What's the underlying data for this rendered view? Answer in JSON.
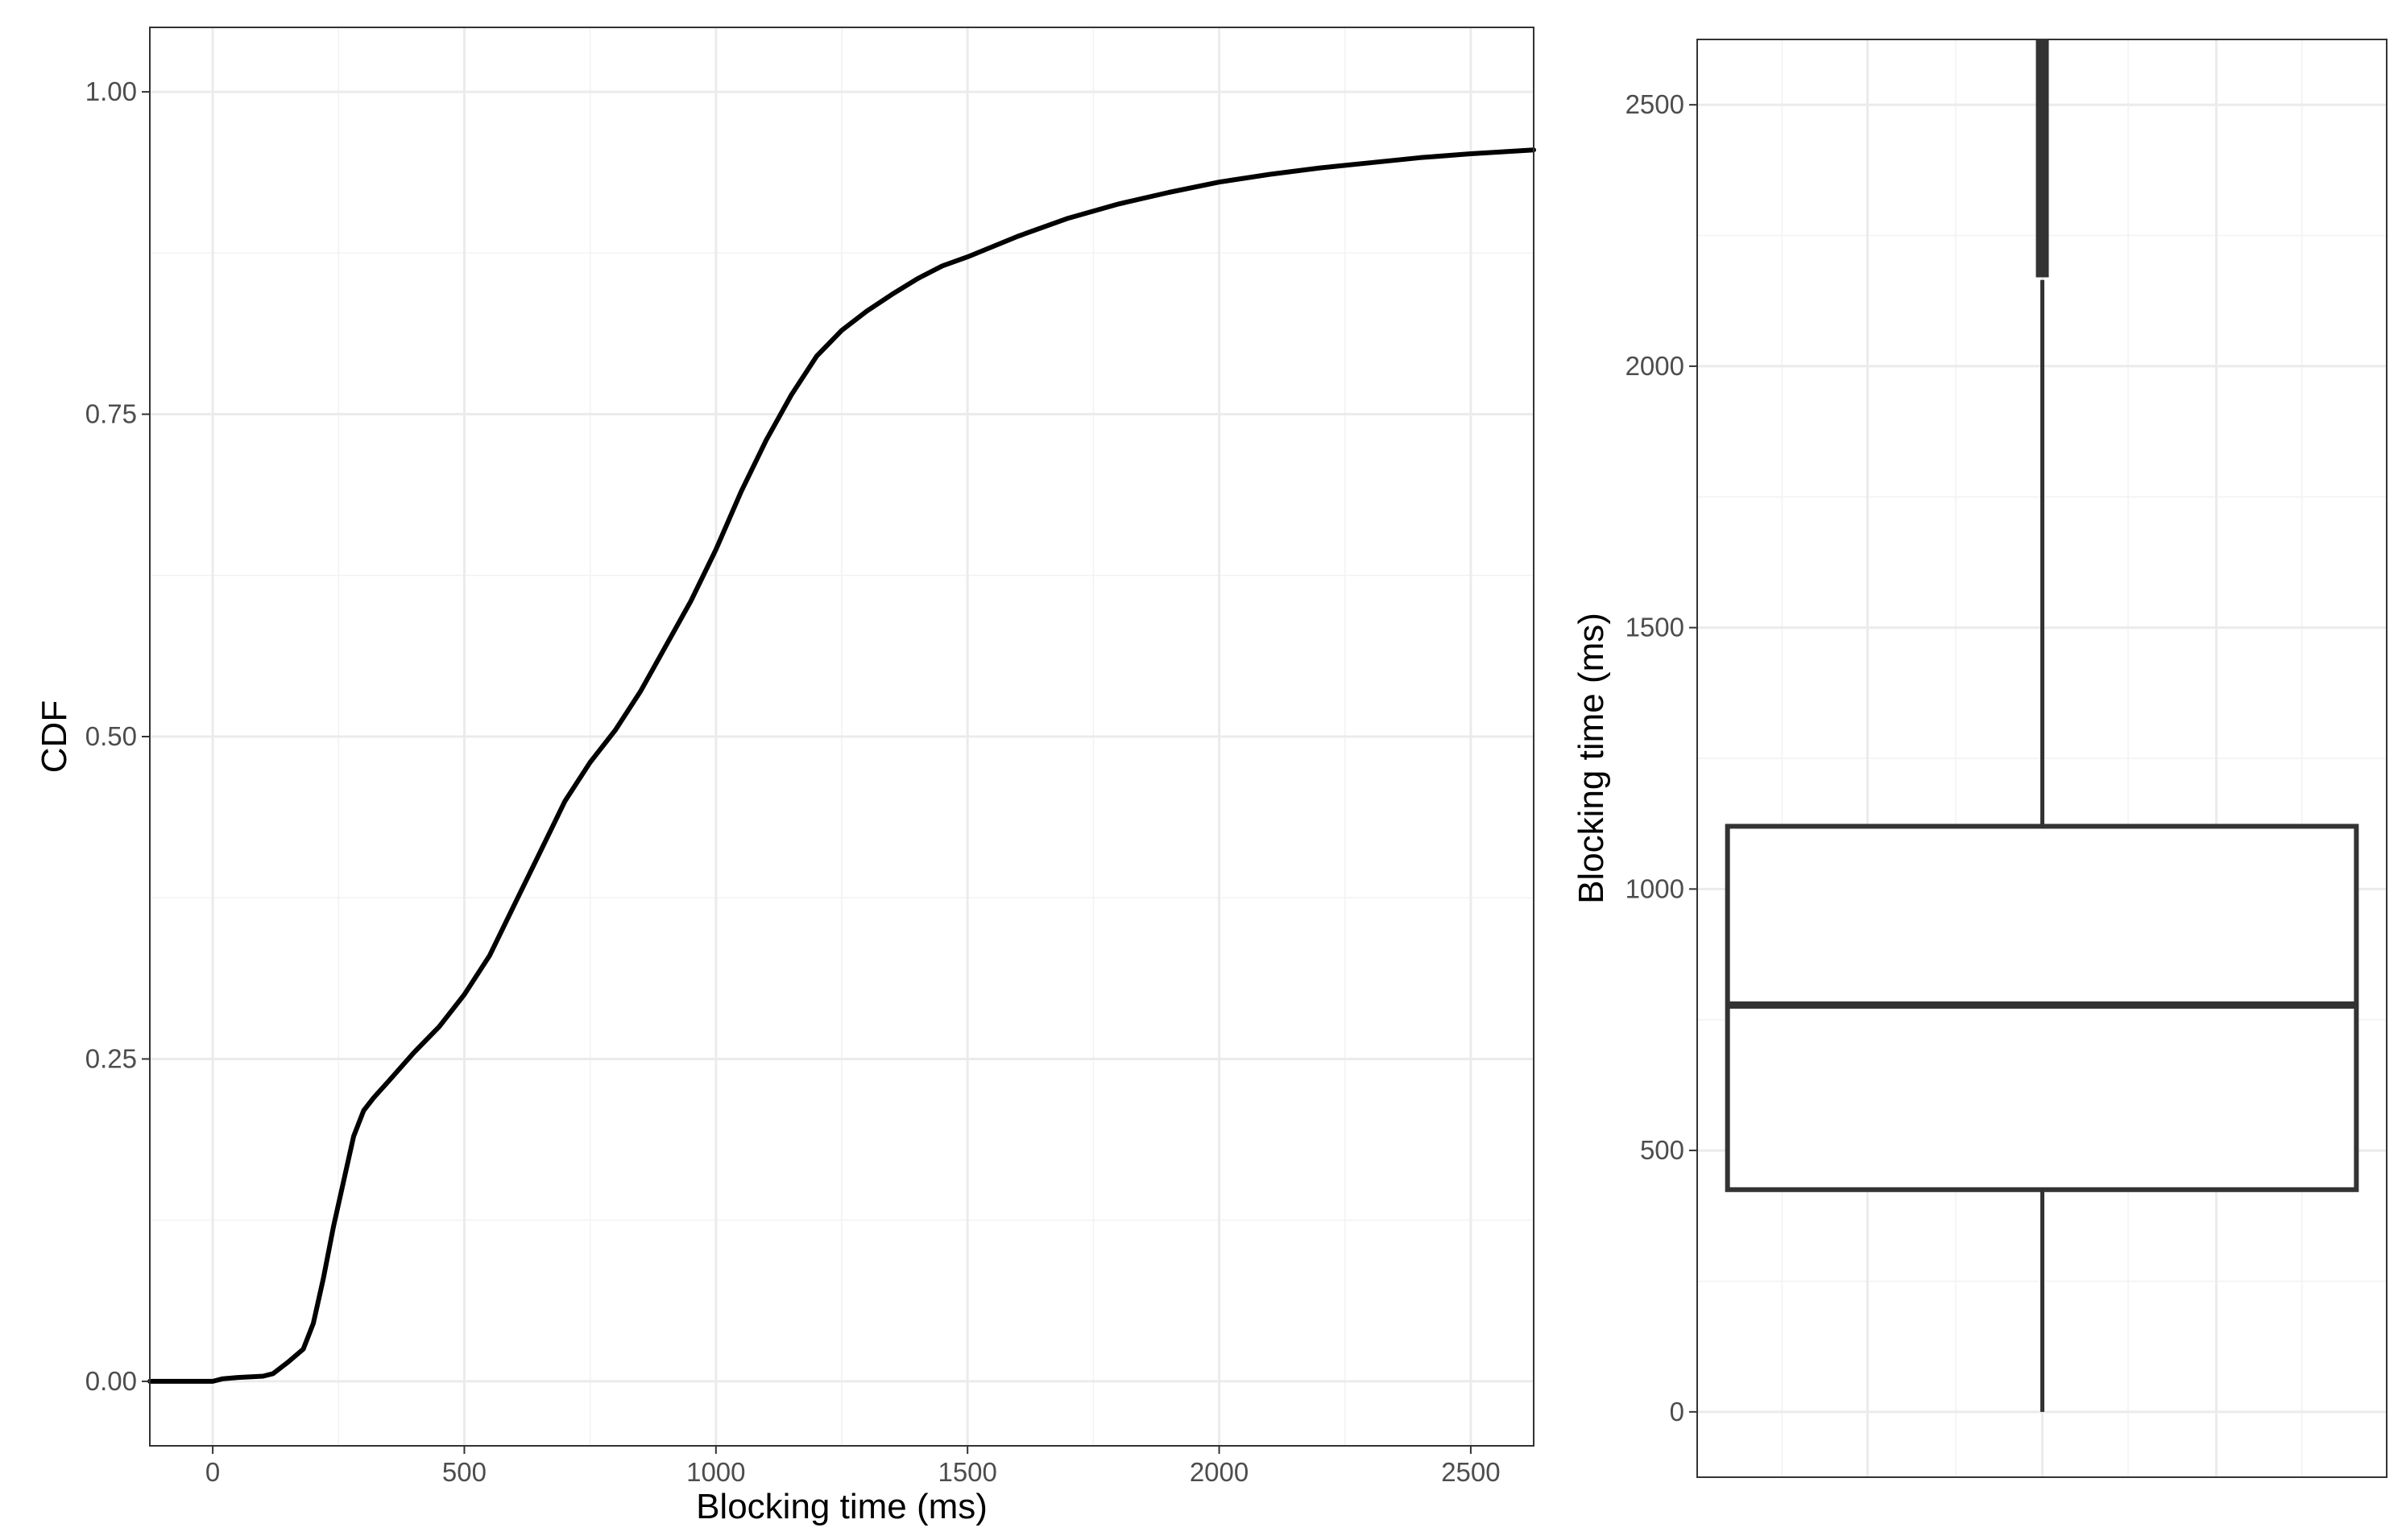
{
  "chart_data": [
    {
      "type": "line",
      "title": "",
      "xlabel": "Blocking time (ms)",
      "ylabel": "CDF",
      "xlim": [
        -125,
        2625
      ],
      "ylim": [
        -0.05,
        1.05
      ],
      "x_ticks": [
        {
          "value": 0,
          "label": "0"
        },
        {
          "value": 500,
          "label": "500"
        },
        {
          "value": 1000,
          "label": "1000"
        },
        {
          "value": 1500,
          "label": "1500"
        },
        {
          "value": 2000,
          "label": "2000"
        },
        {
          "value": 2500,
          "label": "2500"
        }
      ],
      "y_ticks": [
        {
          "value": 0,
          "label": "0.00"
        },
        {
          "value": 0.25,
          "label": "0.25"
        },
        {
          "value": 0.5,
          "label": "0.50"
        },
        {
          "value": 0.75,
          "label": "0.75"
        },
        {
          "value": 1,
          "label": "1.00"
        }
      ],
      "grid": true,
      "line_color": "#000000",
      "series": [
        {
          "x": [
            -125,
            0,
            20,
            50,
            100,
            120,
            150,
            180,
            200,
            220,
            240,
            260,
            280,
            300,
            320,
            350,
            400,
            450,
            500,
            550,
            600,
            650,
            700,
            750,
            800,
            850,
            900,
            950,
            1000,
            1050,
            1100,
            1150,
            1200,
            1250,
            1300,
            1350,
            1400,
            1450,
            1500,
            1600,
            1700,
            1800,
            1900,
            2000,
            2100,
            2200,
            2300,
            2400,
            2500,
            2625
          ],
          "y": [
            0.0,
            0.0,
            0.002,
            0.003,
            0.004,
            0.006,
            0.015,
            0.025,
            0.045,
            0.08,
            0.12,
            0.155,
            0.19,
            0.21,
            0.22,
            0.233,
            0.255,
            0.275,
            0.3,
            0.33,
            0.37,
            0.41,
            0.45,
            0.48,
            0.505,
            0.535,
            0.57,
            0.605,
            0.645,
            0.69,
            0.73,
            0.765,
            0.795,
            0.815,
            0.83,
            0.843,
            0.855,
            0.865,
            0.872,
            0.888,
            0.902,
            0.913,
            0.922,
            0.93,
            0.936,
            0.941,
            0.945,
            0.949,
            0.952,
            0.955
          ]
        }
      ]
    },
    {
      "type": "box",
      "title": "",
      "xlabel": "",
      "ylabel": "Blocking time (ms)",
      "ylim": [
        -125,
        2625
      ],
      "y_ticks": [
        {
          "value": 0,
          "label": "0"
        },
        {
          "value": 500,
          "label": "500"
        },
        {
          "value": 1000,
          "label": "1000"
        },
        {
          "value": 1500,
          "label": "1500"
        },
        {
          "value": 2000,
          "label": "2000"
        },
        {
          "value": 2500,
          "label": "2500"
        }
      ],
      "grid": true,
      "box_color": "#333333",
      "stats": {
        "min": 0,
        "q1": 425,
        "median": 778,
        "q3": 1120,
        "whisker_high": 2165
      },
      "outliers_range": [
        2170,
        2625
      ]
    }
  ]
}
